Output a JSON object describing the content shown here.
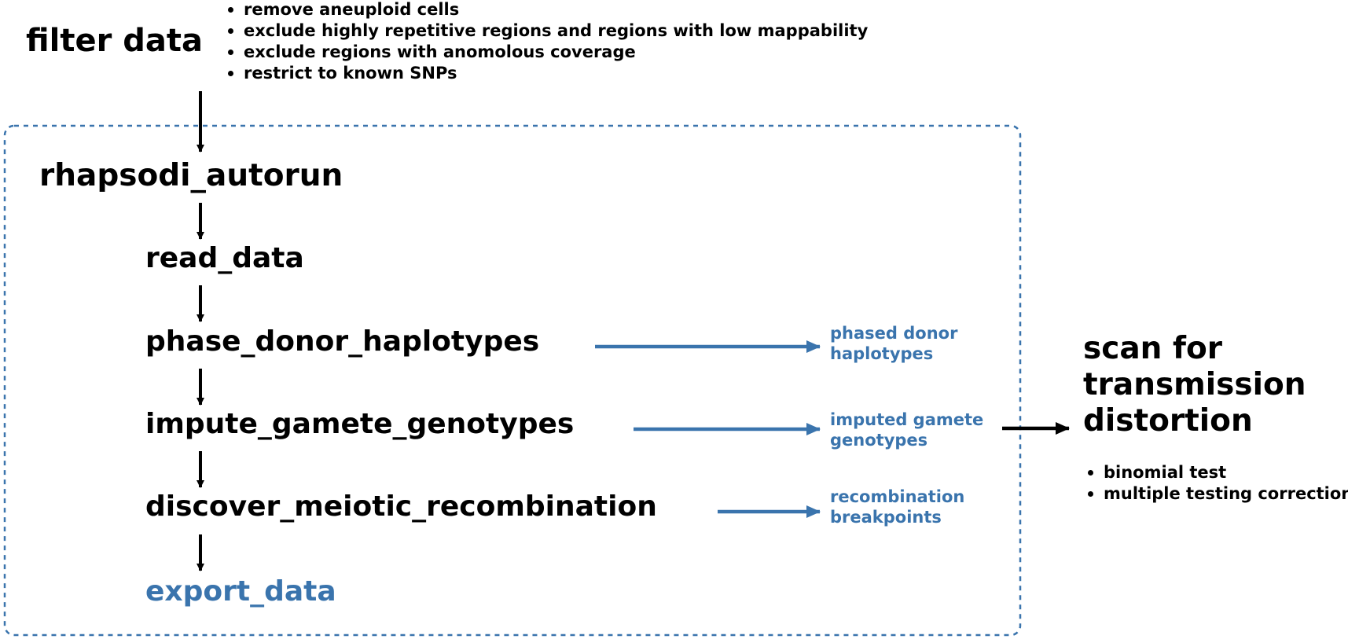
{
  "filter": {
    "title": "filter data",
    "bullets": [
      "remove aneuploid cells",
      "exclude highly repetitive regions and regions with low mappability",
      "exclude regions with anomolous coverage",
      "restrict to known SNPs"
    ]
  },
  "pipeline": {
    "autorun": "rhapsodi_autorun",
    "steps": {
      "read_data": "read_data",
      "phase": "phase_donor_haplotypes",
      "impute": "impute_gamete_genotypes",
      "discover": "discover_meiotic_recombination",
      "export": "export_data"
    }
  },
  "outputs": {
    "phased": [
      "phased donor",
      "haplotypes"
    ],
    "imputed": [
      "imputed gamete",
      "genotypes"
    ],
    "recombination": [
      "recombination",
      "breakpoints"
    ]
  },
  "scan": {
    "title_lines": [
      "scan for",
      "transmission",
      "distortion"
    ],
    "bullets": [
      "binomial test",
      "multiple testing correction"
    ]
  },
  "colors": {
    "text": "#000000",
    "accent_blue": "#3a74ad",
    "box_border": "#3a74ad",
    "arrow_black": "#000000",
    "arrow_blue": "#3a74ad"
  }
}
